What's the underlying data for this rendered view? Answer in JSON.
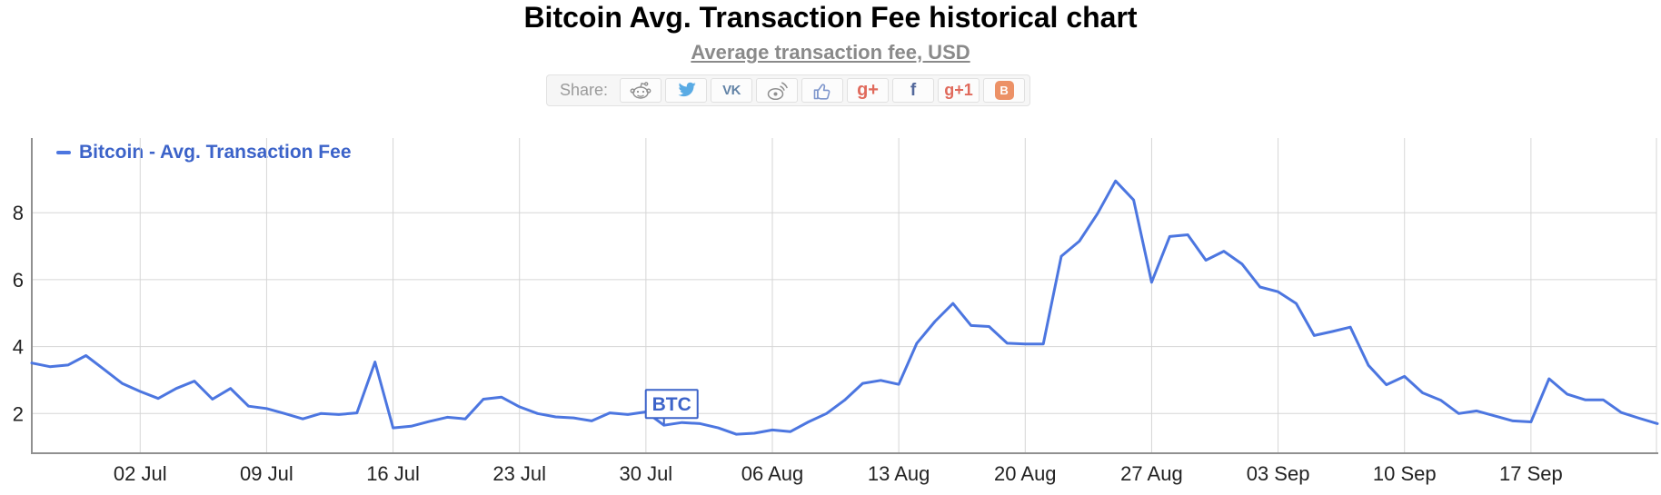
{
  "header": {
    "title": "Bitcoin Avg. Transaction Fee historical chart",
    "subtitle": "Average transaction fee, USD"
  },
  "share_bar": {
    "label": "Share:",
    "buttons": [
      {
        "name": "reddit"
      },
      {
        "name": "twitter"
      },
      {
        "name": "vk",
        "text": "VK"
      },
      {
        "name": "weibo"
      },
      {
        "name": "like"
      },
      {
        "name": "googleplus",
        "text": "g+"
      },
      {
        "name": "facebook",
        "text": "f"
      },
      {
        "name": "gplusone",
        "text": "g+1"
      },
      {
        "name": "blogger",
        "text": "B"
      }
    ]
  },
  "legend": {
    "label": "Bitcoin - Avg. Transaction Fee"
  },
  "annotation": {
    "label": "BTC",
    "date": "31 Jul"
  },
  "colors": {
    "accent_text_blue": "#3c63c9",
    "line_blue": "#4c76e0",
    "grid": "#d6d6d6",
    "axis": "#909090",
    "tick_text": "#222222",
    "subtitle_gray": "#8a8a8a"
  },
  "chart_data": {
    "type": "line",
    "title": "Bitcoin Avg. Transaction Fee historical chart",
    "subtitle": "Average transaction fee, USD",
    "xlabel": "",
    "ylabel": "",
    "grid": true,
    "legend_position": "top-left",
    "y_ticks": [
      2,
      4,
      6,
      8
    ],
    "ylim": [
      0.8,
      10.2
    ],
    "x_tick_labels": [
      "02 Jul",
      "09 Jul",
      "16 Jul",
      "23 Jul",
      "30 Jul",
      "06 Aug",
      "13 Aug",
      "20 Aug",
      "27 Aug",
      "03 Sep",
      "10 Sep",
      "17 Sep"
    ],
    "x_tick_day_indices": [
      6,
      13,
      20,
      27,
      34,
      41,
      48,
      55,
      62,
      69,
      76,
      83
    ],
    "annotation": {
      "label": "BTC",
      "day_index": 35
    },
    "series": [
      {
        "name": "Bitcoin - Avg. Transaction Fee",
        "dates": [
          "26 Jun",
          "27 Jun",
          "28 Jun",
          "29 Jun",
          "30 Jun",
          "01 Jul",
          "02 Jul",
          "03 Jul",
          "04 Jul",
          "05 Jul",
          "06 Jul",
          "07 Jul",
          "08 Jul",
          "09 Jul",
          "10 Jul",
          "11 Jul",
          "12 Jul",
          "13 Jul",
          "14 Jul",
          "15 Jul",
          "16 Jul",
          "17 Jul",
          "18 Jul",
          "19 Jul",
          "20 Jul",
          "21 Jul",
          "22 Jul",
          "23 Jul",
          "24 Jul",
          "25 Jul",
          "26 Jul",
          "27 Jul",
          "28 Jul",
          "29 Jul",
          "30 Jul",
          "31 Jul",
          "01 Aug",
          "02 Aug",
          "03 Aug",
          "04 Aug",
          "05 Aug",
          "06 Aug",
          "07 Aug",
          "08 Aug",
          "09 Aug",
          "10 Aug",
          "11 Aug",
          "12 Aug",
          "13 Aug",
          "14 Aug",
          "15 Aug",
          "16 Aug",
          "17 Aug",
          "18 Aug",
          "19 Aug",
          "20 Aug",
          "21 Aug",
          "22 Aug",
          "23 Aug",
          "24 Aug",
          "25 Aug",
          "26 Aug",
          "27 Aug",
          "28 Aug",
          "29 Aug",
          "30 Aug",
          "31 Aug",
          "01 Sep",
          "02 Sep",
          "03 Sep",
          "04 Sep",
          "05 Sep",
          "06 Sep",
          "07 Sep",
          "08 Sep",
          "09 Sep",
          "10 Sep",
          "11 Sep",
          "12 Sep",
          "13 Sep",
          "14 Sep",
          "15 Sep",
          "16 Sep",
          "17 Sep",
          "18 Sep",
          "19 Sep",
          "20 Sep",
          "21 Sep",
          "22 Sep",
          "23 Sep",
          "24 Sep"
        ],
        "values": [
          3.51,
          3.4,
          3.45,
          3.73,
          3.32,
          2.9,
          2.66,
          2.45,
          2.75,
          2.97,
          2.43,
          2.75,
          2.22,
          2.15,
          2.0,
          1.84,
          2.0,
          1.97,
          2.02,
          3.54,
          1.57,
          1.62,
          1.76,
          1.89,
          1.84,
          2.43,
          2.49,
          2.2,
          2.0,
          1.9,
          1.87,
          1.78,
          2.02,
          1.97,
          2.05,
          1.65,
          1.73,
          1.7,
          1.57,
          1.38,
          1.41,
          1.51,
          1.46,
          1.75,
          2.0,
          2.4,
          2.9,
          2.99,
          2.87,
          4.1,
          4.75,
          5.29,
          4.63,
          4.6,
          4.1,
          4.08,
          4.08,
          6.7,
          7.15,
          7.97,
          8.95,
          8.38,
          5.92,
          7.29,
          7.34,
          6.58,
          6.85,
          6.47,
          5.78,
          5.64,
          5.29,
          4.33,
          4.45,
          4.58,
          3.44,
          2.86,
          3.11,
          2.62,
          2.4,
          2.0,
          2.08,
          1.93,
          1.78,
          1.75,
          3.04,
          2.58,
          2.41,
          2.41,
          2.03,
          1.86,
          1.7
        ]
      }
    ]
  }
}
